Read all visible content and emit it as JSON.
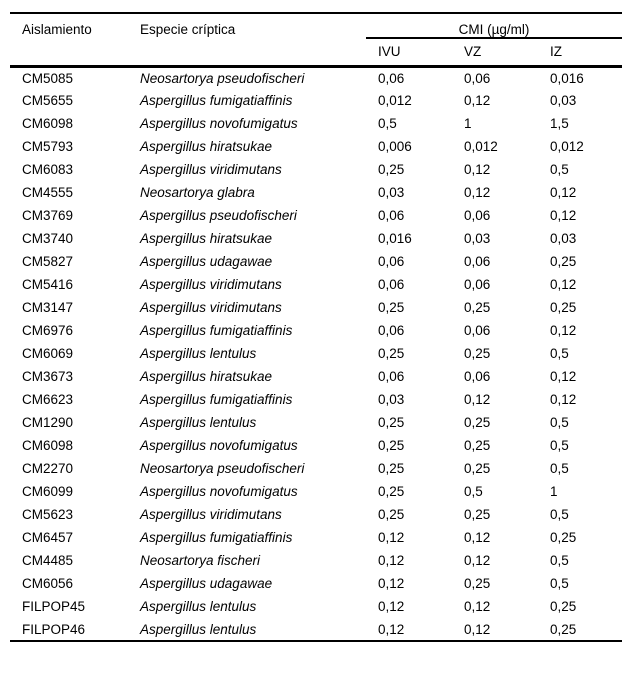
{
  "table": {
    "colors": {
      "text": "#000000",
      "background": "#ffffff",
      "rule": "#000000"
    },
    "columns": {
      "isolate": "Aislamiento",
      "species": "Especie críptica",
      "mic_group": "CMI (µg/ml)",
      "mic_sub": [
        "IVU",
        "VZ",
        "IZ"
      ]
    },
    "rows": [
      {
        "isolate": "CM5085",
        "species": "Neosartorya pseudofischeri",
        "ivu": "0,06",
        "vz": "0,06",
        "iz": "0,016"
      },
      {
        "isolate": "CM5655",
        "species": "Aspergillus fumigatiaffinis",
        "ivu": "0,012",
        "vz": "0,12",
        "iz": "0,03"
      },
      {
        "isolate": "CM6098",
        "species": "Aspergillus novofumigatus",
        "ivu": "0,5",
        "vz": "1",
        "iz": "1,5"
      },
      {
        "isolate": "CM5793",
        "species": "Aspergillus hiratsukae",
        "ivu": "0,006",
        "vz": "0,012",
        "iz": "0,012"
      },
      {
        "isolate": "CM6083",
        "species": "Aspergillus viridimutans",
        "ivu": "0,25",
        "vz": "0,12",
        "iz": "0,5"
      },
      {
        "isolate": "CM4555",
        "species": "Neosartorya glabra",
        "ivu": "0,03",
        "vz": "0,12",
        "iz": "0,12"
      },
      {
        "isolate": "CM3769",
        "species": "Aspergillus pseudofischeri",
        "ivu": "0,06",
        "vz": "0,06",
        "iz": "0,12"
      },
      {
        "isolate": "CM3740",
        "species": "Aspergillus hiratsukae",
        "ivu": "0,016",
        "vz": "0,03",
        "iz": "0,03"
      },
      {
        "isolate": "CM5827",
        "species": "Aspergillus udagawae",
        "ivu": "0,06",
        "vz": "0,06",
        "iz": "0,25"
      },
      {
        "isolate": "CM5416",
        "species": "Aspergillus viridimutans",
        "ivu": "0,06",
        "vz": "0,06",
        "iz": "0,12"
      },
      {
        "isolate": "CM3147",
        "species": "Aspergillus viridimutans",
        "ivu": "0,25",
        "vz": "0,25",
        "iz": "0,25"
      },
      {
        "isolate": "CM6976",
        "species": "Aspergillus fumigatiaffinis",
        "ivu": "0,06",
        "vz": "0,06",
        "iz": "0,12"
      },
      {
        "isolate": "CM6069",
        "species": "Aspergillus lentulus",
        "ivu": "0,25",
        "vz": "0,25",
        "iz": "0,5"
      },
      {
        "isolate": "CM3673",
        "species": "Aspergillus hiratsukae",
        "ivu": "0,06",
        "vz": "0,06",
        "iz": "0,12"
      },
      {
        "isolate": "CM6623",
        "species": "Aspergillus fumigatiaffinis",
        "ivu": "0,03",
        "vz": "0,12",
        "iz": "0,12"
      },
      {
        "isolate": "CM1290",
        "species": "Aspergillus lentulus",
        "ivu": "0,25",
        "vz": "0,25",
        "iz": "0,5"
      },
      {
        "isolate": "CM6098",
        "species": "Aspergillus novofumigatus",
        "ivu": "0,25",
        "vz": "0,25",
        "iz": "0,5"
      },
      {
        "isolate": "CM2270",
        "species": "Neosartorya pseudofischeri",
        "ivu": "0,25",
        "vz": "0,25",
        "iz": "0,5"
      },
      {
        "isolate": "CM6099",
        "species": "Aspergillus novofumigatus",
        "ivu": "0,25",
        "vz": "0,5",
        "iz": "1"
      },
      {
        "isolate": "CM5623",
        "species": "Aspergillus viridimutans",
        "ivu": "0,25",
        "vz": "0,25",
        "iz": "0,5"
      },
      {
        "isolate": "CM6457",
        "species": "Aspergillus fumigatiaffinis",
        "ivu": "0,12",
        "vz": "0,12",
        "iz": "0,25"
      },
      {
        "isolate": "CM4485",
        "species": "Neosartorya fischeri",
        "ivu": "0,12",
        "vz": "0,12",
        "iz": "0,5"
      },
      {
        "isolate": "CM6056",
        "species": "Aspergillus udagawae",
        "ivu": "0,12",
        "vz": "0,25",
        "iz": "0,5"
      },
      {
        "isolate": "FILPOP45",
        "species": "Aspergillus lentulus",
        "ivu": "0,12",
        "vz": "0,12",
        "iz": "0,25"
      },
      {
        "isolate": "FILPOP46",
        "species": "Aspergillus lentulus",
        "ivu": "0,12",
        "vz": "0,12",
        "iz": "0,25"
      }
    ]
  },
  "chart_data": {
    "type": "table",
    "title": "CMI (µg/ml)",
    "columns": [
      "Aislamiento",
      "Especie críptica",
      "IVU",
      "VZ",
      "IZ"
    ]
  }
}
